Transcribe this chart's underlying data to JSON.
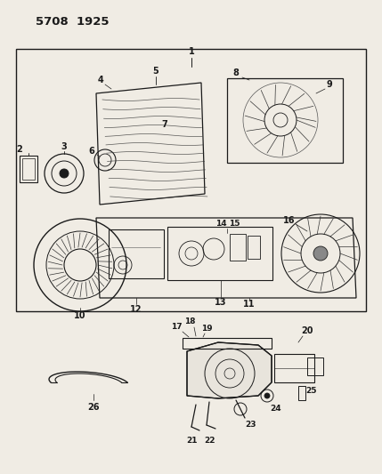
{
  "title": "5708  1925",
  "bg_color": "#f0ece4",
  "line_color": "#1a1a1a",
  "fig_width": 4.29,
  "fig_height": 5.33,
  "dpi": 100
}
